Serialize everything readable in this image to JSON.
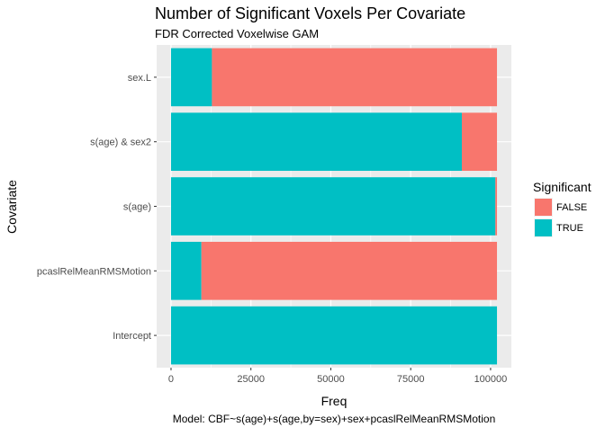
{
  "chart_data": {
    "type": "bar",
    "orientation": "horizontal",
    "stacked": true,
    "title": "Number of Significant Voxels Per Covariate",
    "subtitle": "FDR Corrected Voxelwise GAM",
    "xlabel": "Freq",
    "ylabel": "Covariate",
    "caption": "Model: CBF~s(age)+s(age,by=sex)+sex+pcaslRelMeanRMSMotion",
    "categories": [
      "Intercept",
      "pcaslRelMeanRMSMotion",
      "s(age)",
      "s(age) & sex2",
      "sex.L"
    ],
    "series": [
      {
        "name": "TRUE",
        "color": "#00BFC4",
        "values": [
          102000,
          9500,
          101500,
          91000,
          12800
        ]
      },
      {
        "name": "FALSE",
        "color": "#F8766D",
        "values": [
          0,
          92500,
          500,
          11000,
          89200
        ]
      }
    ],
    "xlim": [
      -4500,
      106500
    ],
    "xticks": [
      0,
      25000,
      50000,
      75000,
      100000
    ],
    "xtick_labels": [
      "0",
      "25000",
      "50000",
      "75000",
      "100000"
    ],
    "grid": true,
    "legend": {
      "title": "Significant",
      "position": "right",
      "entries": [
        {
          "label": "FALSE",
          "color": "#F8766D"
        },
        {
          "label": "TRUE",
          "color": "#00BFC4"
        }
      ]
    },
    "panel_background": "#EBEBEB"
  }
}
